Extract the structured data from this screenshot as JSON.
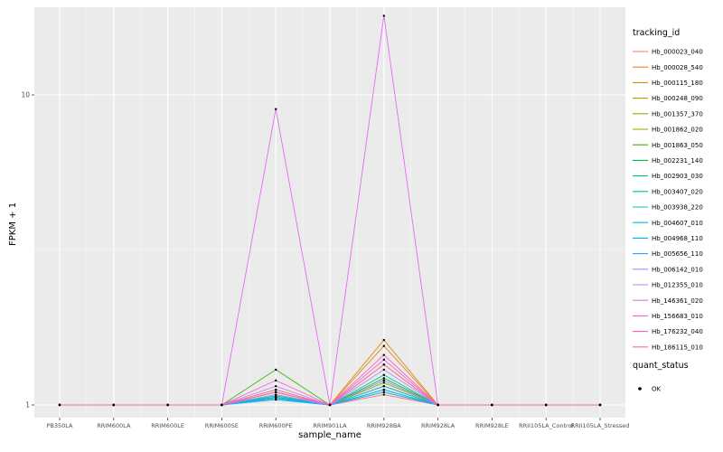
{
  "chart_data": {
    "type": "line",
    "title": "",
    "xlabel": "sample_name",
    "ylabel": "FPKM + 1",
    "y_scale": "log10",
    "y_ticks": [
      1,
      10
    ],
    "ylim": [
      0.91,
      19
    ],
    "panel_bg": "#EBEBEB",
    "grid_color": "#FFFFFF",
    "point_color": "#000000",
    "categories": [
      "PB350LA",
      "RRIM600LA",
      "RRIM600LE",
      "RRIM600SE",
      "RRIM600PE",
      "RRIM901LA",
      "RRIM928BA",
      "RRIM928LA",
      "RRIM928LE",
      "RRII105LA_Control",
      "RRII105LA_Stressed"
    ],
    "legend": {
      "color_title": "tracking_id",
      "shape_title": "quant_status",
      "shape_items": [
        {
          "label": "OK",
          "marker": "point"
        }
      ]
    },
    "series": [
      {
        "name": "Hb_000023_040",
        "color": "#F8766D",
        "values": [
          1,
          1,
          1,
          1,
          1.05,
          1,
          1.08,
          1,
          1,
          1,
          1
        ]
      },
      {
        "name": "Hb_000028_540",
        "color": "#EA8331",
        "values": [
          1,
          1,
          1,
          1,
          1.1,
          1,
          1.55,
          1,
          1,
          1,
          1
        ]
      },
      {
        "name": "Hb_000115_180",
        "color": "#D89000",
        "values": [
          1,
          1,
          1,
          1,
          1.12,
          1,
          1.62,
          1,
          1,
          1,
          1
        ]
      },
      {
        "name": "Hb_000248_090",
        "color": "#C09B00",
        "values": [
          1,
          1,
          1,
          1,
          1.06,
          1,
          1.2,
          1,
          1,
          1,
          1
        ]
      },
      {
        "name": "Hb_001357_370",
        "color": "#A3A500",
        "values": [
          1,
          1,
          1,
          1,
          1.05,
          1,
          1.15,
          1,
          1,
          1,
          1
        ]
      },
      {
        "name": "Hb_001862_020",
        "color": "#7CAE00",
        "values": [
          1,
          1,
          1,
          1,
          1.08,
          1,
          1.18,
          1,
          1,
          1,
          1
        ]
      },
      {
        "name": "Hb_001863_050",
        "color": "#39B600",
        "values": [
          1,
          1,
          1,
          1,
          1.3,
          1,
          1.35,
          1,
          1,
          1,
          1
        ]
      },
      {
        "name": "Hb_002231_140",
        "color": "#00BB4E",
        "values": [
          1,
          1,
          1,
          1,
          1.1,
          1,
          1.22,
          1,
          1,
          1,
          1
        ]
      },
      {
        "name": "Hb_002903_030",
        "color": "#00BF7D",
        "values": [
          1,
          1,
          1,
          1,
          1.05,
          1,
          1.12,
          1,
          1,
          1,
          1
        ]
      },
      {
        "name": "Hb_003407_020",
        "color": "#00C1A3",
        "values": [
          1,
          1,
          1,
          1,
          1.07,
          1,
          1.25,
          1,
          1,
          1,
          1
        ]
      },
      {
        "name": "Hb_003938_220",
        "color": "#00BFC4",
        "values": [
          1,
          1,
          1,
          1,
          1.05,
          1,
          1.1,
          1,
          1,
          1,
          1
        ]
      },
      {
        "name": "Hb_004607_010",
        "color": "#00BAE0",
        "values": [
          1,
          1,
          1,
          1,
          1.04,
          1,
          1.12,
          1,
          1,
          1,
          1
        ]
      },
      {
        "name": "Hb_004968_110",
        "color": "#00B0F6",
        "values": [
          1,
          1,
          1,
          1,
          1.06,
          1,
          1.15,
          1,
          1,
          1,
          1
        ]
      },
      {
        "name": "Hb_005656_110",
        "color": "#35A2FF",
        "values": [
          1,
          1,
          1,
          1,
          1.05,
          1,
          1.1,
          1,
          1,
          1,
          1
        ]
      },
      {
        "name": "Hb_006142_010",
        "color": "#9590FF",
        "values": [
          1,
          1,
          1,
          1,
          1.08,
          1,
          1.2,
          1,
          1,
          1,
          1
        ]
      },
      {
        "name": "Hb_012355_010",
        "color": "#C77CFF",
        "values": [
          1,
          1,
          1,
          1,
          1.15,
          1,
          1.3,
          1,
          1,
          1,
          1
        ]
      },
      {
        "name": "Hb_146361_020",
        "color": "#E76BF3",
        "values": [
          1,
          1,
          1,
          1,
          9.0,
          1,
          18.0,
          1,
          1,
          1,
          1
        ]
      },
      {
        "name": "Hb_156683_010",
        "color": "#FA62DB",
        "values": [
          1,
          1,
          1,
          1,
          1.2,
          1,
          1.4,
          1,
          1,
          1,
          1
        ]
      },
      {
        "name": "Hb_176232_040",
        "color": "#FF62BC",
        "values": [
          1,
          1,
          1,
          1,
          1.1,
          1,
          1.45,
          1,
          1,
          1,
          1
        ]
      },
      {
        "name": "Hb_186115_010",
        "color": "#FF6A98",
        "values": [
          1,
          1,
          1,
          1,
          1.12,
          1,
          1.35,
          1,
          1,
          1,
          1
        ]
      }
    ]
  }
}
